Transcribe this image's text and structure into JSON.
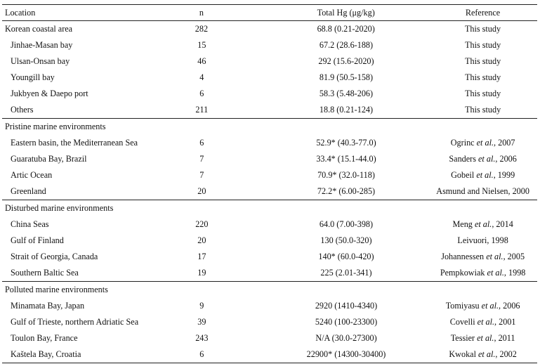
{
  "table": {
    "headers": {
      "location": "Location",
      "n": "n",
      "hg": "Total Hg (μg/kg)",
      "reference": "Reference"
    },
    "groups": [
      {
        "title": "",
        "rows": [
          {
            "location": "Korean coastal area",
            "indent": false,
            "n": "282",
            "hg": "68.8 (0.21-2020)",
            "ref_pre": "This study",
            "ref_em": "",
            "ref_post": ""
          },
          {
            "location": "Jinhae-Masan bay",
            "indent": true,
            "n": "15",
            "hg": "67.2 (28.6-188)",
            "ref_pre": "This study",
            "ref_em": "",
            "ref_post": ""
          },
          {
            "location": "Ulsan-Onsan bay",
            "indent": true,
            "n": "46",
            "hg": "292 (15.6-2020)",
            "ref_pre": "This study",
            "ref_em": "",
            "ref_post": ""
          },
          {
            "location": "Youngill bay",
            "indent": true,
            "n": "4",
            "hg": "81.9 (50.5-158)",
            "ref_pre": "This study",
            "ref_em": "",
            "ref_post": ""
          },
          {
            "location": "Jukbyen & Daepo port",
            "indent": true,
            "n": "6",
            "hg": "58.3 (5.48-206)",
            "ref_pre": "This study",
            "ref_em": "",
            "ref_post": ""
          },
          {
            "location": "Others",
            "indent": true,
            "n": "211",
            "hg": "18.8 (0.21-124)",
            "ref_pre": "This study",
            "ref_em": "",
            "ref_post": ""
          }
        ]
      },
      {
        "title": "Pristine marine environments",
        "rows": [
          {
            "location": "Eastern basin, the Mediterranean Sea",
            "indent": true,
            "n": "6",
            "hg": "52.9* (40.3-77.0)",
            "ref_pre": "Ogrinc ",
            "ref_em": "et al.",
            "ref_post": ", 2007"
          },
          {
            "location": "Guaratuba Bay, Brazil",
            "indent": true,
            "n": "7",
            "hg": "33.4* (15.1-44.0)",
            "ref_pre": "Sanders ",
            "ref_em": "et al.",
            "ref_post": ", 2006"
          },
          {
            "location": "Artic Ocean",
            "indent": true,
            "n": "7",
            "hg": "70.9* (32.0-118)",
            "ref_pre": "Gobeil ",
            "ref_em": "et al.",
            "ref_post": ", 1999"
          },
          {
            "location": "Greenland",
            "indent": true,
            "n": "20",
            "hg": "72.2* (6.00-285)",
            "ref_pre": "Asmund and Nielsen, 2000",
            "ref_em": "",
            "ref_post": ""
          }
        ]
      },
      {
        "title": "Disturbed marine environments",
        "rows": [
          {
            "location": "China Seas",
            "indent": true,
            "n": "220",
            "hg": "64.0 (7.00-398)",
            "ref_pre": "Meng ",
            "ref_em": "et al.",
            "ref_post": ", 2014"
          },
          {
            "location": "Gulf of Finland",
            "indent": true,
            "n": "20",
            "hg": "130 (50.0-320)",
            "ref_pre": "Leivuori, 1998",
            "ref_em": "",
            "ref_post": ""
          },
          {
            "location": "Strait of Georgia, Canada",
            "indent": true,
            "n": "17",
            "hg": "140* (60.0-420)",
            "ref_pre": "Johannessen ",
            "ref_em": "et al.",
            "ref_post": ", 2005"
          },
          {
            "location": "Southern Baltic Sea",
            "indent": true,
            "n": "19",
            "hg": "225 (2.01-341)",
            "ref_pre": "Pempkowiak ",
            "ref_em": "et al.",
            "ref_post": ", 1998"
          }
        ]
      },
      {
        "title": "Polluted marine environments",
        "rows": [
          {
            "location": "Minamata Bay, Japan",
            "indent": true,
            "n": "9",
            "hg": "2920 (1410-4340)",
            "ref_pre": "Tomiyasu ",
            "ref_em": "et al.",
            "ref_post": ", 2006"
          },
          {
            "location": "Gulf of Trieste, northern Adriatic Sea",
            "indent": true,
            "n": "39",
            "hg": "5240 (100-23300)",
            "ref_pre": "Covelli ",
            "ref_em": "et al.",
            "ref_post": ", 2001"
          },
          {
            "location": "Toulon Bay, France",
            "indent": true,
            "n": "243",
            "hg": "N/A (30.0-27300)",
            "ref_pre": "Tessier ",
            "ref_em": "et al.",
            "ref_post": ", 2011"
          },
          {
            "location": "Kaštela Bay, Croatia",
            "indent": true,
            "n": "6",
            "hg": "22900* (14300-30400)",
            "ref_pre": "Kwokal ",
            "ref_em": "et al.",
            "ref_post": ", 2002"
          }
        ]
      }
    ]
  }
}
